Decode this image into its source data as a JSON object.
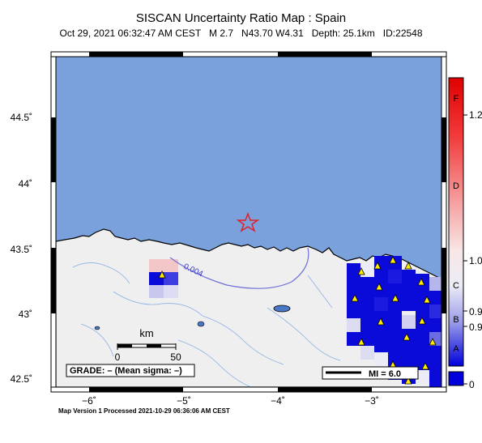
{
  "title": "SISCAN Uncertainty Ratio Map : Spain",
  "subtitle": "Oct 29, 2021 06:32:47 AM CEST   M 2.7   N43.70 W4.31   Depth: 25.1km   ID:22548",
  "footer": "Map Version 1 Processed 2021-10-29 06:36:06 AM CEST",
  "lat_ticks": [
    "44.5˚",
    "44˚",
    "43.5˚",
    "43˚",
    "42.5˚"
  ],
  "lon_ticks": [
    "−6˚",
    "−5˚",
    "−4˚",
    "−3˚"
  ],
  "scale_bar": {
    "unit": "km",
    "start": "0",
    "end": "50"
  },
  "grade_box": "GRADE: – (Mean sigma: –)",
  "mi_legend": "MI = 6.0",
  "contour_label": "0.004",
  "colorbar": {
    "letters": [
      "F",
      "D",
      "C",
      "B",
      "A"
    ],
    "values": [
      "1.2",
      "1.0",
      "0.9",
      "0.9",
      "0"
    ]
  },
  "colors": {
    "sea": "#7ba1dd",
    "land": "#efefef",
    "epicenter": "#e0202a",
    "station": "#ffea00",
    "cell_high": "#0b0bd9"
  }
}
